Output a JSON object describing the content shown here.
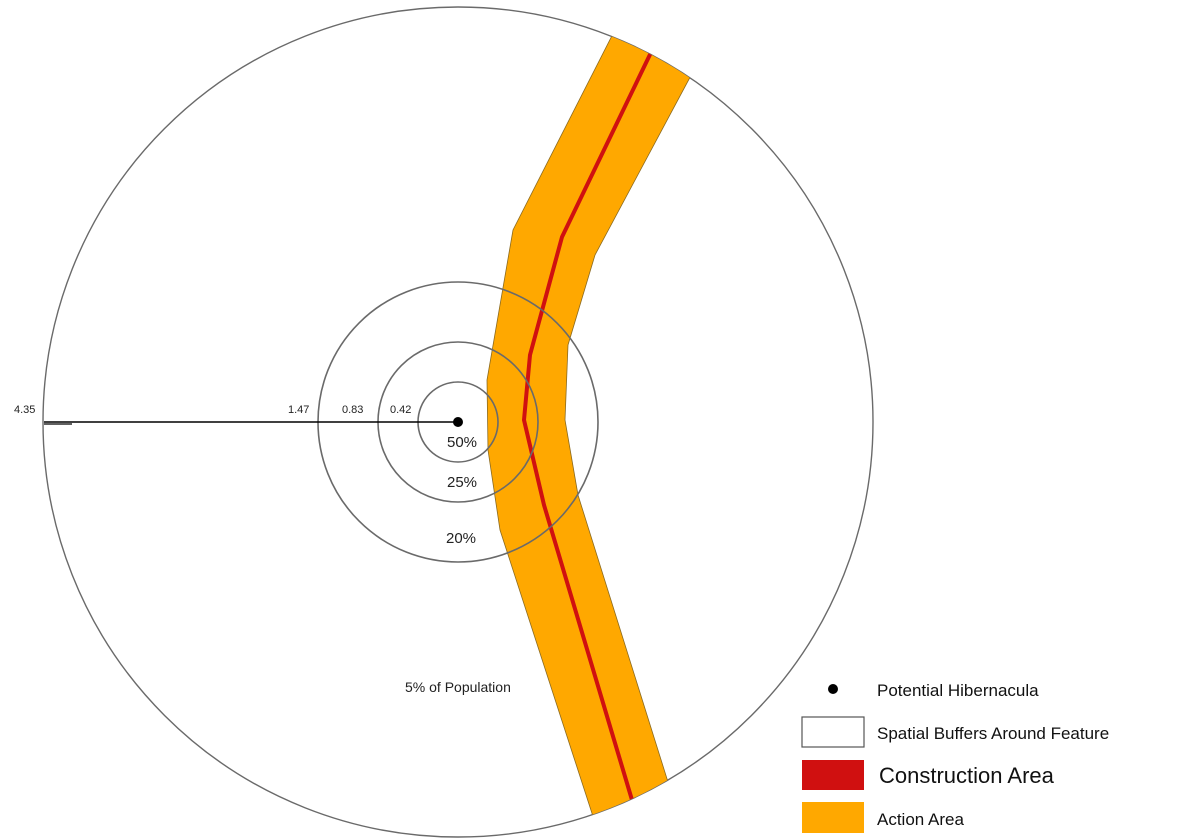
{
  "colors": {
    "action_area": "#FFA800",
    "construction_area": "#D01010",
    "ring_stroke": "#6a6a6a",
    "hibernacula": "#000000"
  },
  "distance_labels": {
    "outer": "4.35",
    "ring3": "1.47",
    "ring2": "0.83",
    "ring1": "0.42"
  },
  "population_labels": {
    "inner": "50%",
    "middle": "25%",
    "outer_ring": "20%",
    "remainder": "5% of Population"
  },
  "legend": {
    "hibernacula": "Potential Hibernacula",
    "buffers": "Spatial Buffers Around Feature",
    "construction": "Construction Area",
    "action": "Action Area"
  }
}
